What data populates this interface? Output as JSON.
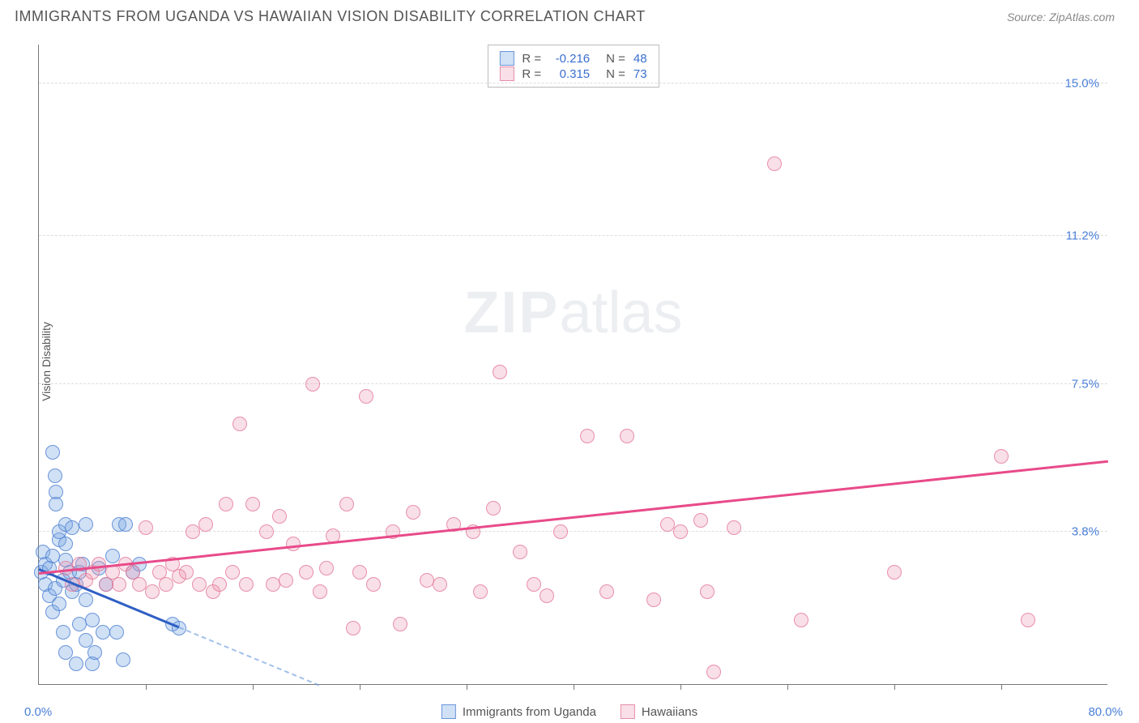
{
  "header": {
    "title": "IMMIGRANTS FROM UGANDA VS HAWAIIAN VISION DISABILITY CORRELATION CHART",
    "source": "Source: ZipAtlas.com"
  },
  "y_axis_label": "Vision Disability",
  "watermark": {
    "bold": "ZIP",
    "rest": "atlas"
  },
  "chart": {
    "type": "scatter",
    "xlim": [
      0,
      80
    ],
    "ylim": [
      0,
      16
    ],
    "x_min_label": "0.0%",
    "x_max_label": "80.0%",
    "y_ticks": [
      {
        "value": 3.8,
        "label": "3.8%"
      },
      {
        "value": 7.5,
        "label": "7.5%"
      },
      {
        "value": 11.2,
        "label": "11.2%"
      },
      {
        "value": 15.0,
        "label": "15.0%"
      }
    ],
    "x_tick_positions": [
      8,
      16,
      24,
      32,
      40,
      48,
      56,
      64,
      72
    ],
    "background_color": "#ffffff",
    "grid_color": "#dddddd",
    "marker_size": 18,
    "series": [
      {
        "name": "Immigrants from Uganda",
        "color_fill": "rgba(120,165,225,0.35)",
        "color_stroke": "rgba(80,130,210,0.8)",
        "class": "blue",
        "R": "-0.216",
        "N": "48",
        "trend": {
          "x1": 0,
          "y1": 2.85,
          "x2": 10.5,
          "y2": 1.4,
          "dash_continue_to_x": 21
        },
        "points": [
          [
            0.2,
            2.8
          ],
          [
            0.3,
            3.3
          ],
          [
            0.5,
            2.5
          ],
          [
            0.5,
            3.0
          ],
          [
            0.8,
            2.2
          ],
          [
            0.8,
            2.9
          ],
          [
            1.0,
            3.2
          ],
          [
            1.0,
            1.8
          ],
          [
            1.0,
            5.8
          ],
          [
            1.2,
            2.4
          ],
          [
            1.2,
            5.2
          ],
          [
            1.3,
            4.8
          ],
          [
            1.3,
            4.5
          ],
          [
            1.5,
            2.0
          ],
          [
            1.5,
            3.6
          ],
          [
            1.5,
            3.8
          ],
          [
            1.8,
            1.3
          ],
          [
            1.8,
            2.6
          ],
          [
            2.0,
            3.1
          ],
          [
            2.0,
            3.5
          ],
          [
            2.0,
            4.0
          ],
          [
            2.0,
            0.8
          ],
          [
            2.3,
            2.8
          ],
          [
            2.5,
            2.3
          ],
          [
            2.5,
            3.9
          ],
          [
            2.8,
            2.5
          ],
          [
            2.8,
            0.5
          ],
          [
            3.0,
            1.5
          ],
          [
            3.0,
            2.8
          ],
          [
            3.3,
            3.0
          ],
          [
            3.5,
            1.1
          ],
          [
            3.5,
            2.1
          ],
          [
            3.5,
            4.0
          ],
          [
            4.0,
            1.6
          ],
          [
            4.0,
            0.5
          ],
          [
            4.2,
            0.8
          ],
          [
            4.5,
            2.9
          ],
          [
            4.8,
            1.3
          ],
          [
            5.0,
            2.5
          ],
          [
            5.5,
            3.2
          ],
          [
            5.8,
            1.3
          ],
          [
            6.0,
            4.0
          ],
          [
            6.3,
            0.6
          ],
          [
            6.5,
            4.0
          ],
          [
            7.0,
            2.8
          ],
          [
            7.5,
            3.0
          ],
          [
            10.0,
            1.5
          ],
          [
            10.5,
            1.4
          ]
        ]
      },
      {
        "name": "Hawaiians",
        "color_fill": "rgba(235,150,175,0.3)",
        "color_stroke": "rgba(225,115,150,0.75)",
        "class": "pink",
        "R": "0.315",
        "N": "73",
        "trend": {
          "x1": 0,
          "y1": 2.75,
          "x2": 80,
          "y2": 5.55
        },
        "points": [
          [
            2.0,
            2.9
          ],
          [
            2.5,
            2.5
          ],
          [
            3.0,
            3.0
          ],
          [
            3.5,
            2.6
          ],
          [
            4.0,
            2.8
          ],
          [
            4.5,
            3.0
          ],
          [
            5.0,
            2.5
          ],
          [
            5.5,
            2.8
          ],
          [
            6.0,
            2.5
          ],
          [
            6.5,
            3.0
          ],
          [
            7.0,
            2.8
          ],
          [
            7.5,
            2.5
          ],
          [
            8.0,
            3.9
          ],
          [
            8.5,
            2.3
          ],
          [
            9.0,
            2.8
          ],
          [
            9.5,
            2.5
          ],
          [
            10.0,
            3.0
          ],
          [
            10.5,
            2.7
          ],
          [
            11.0,
            2.8
          ],
          [
            11.5,
            3.8
          ],
          [
            12.0,
            2.5
          ],
          [
            12.5,
            4.0
          ],
          [
            13.0,
            2.3
          ],
          [
            13.5,
            2.5
          ],
          [
            14.0,
            4.5
          ],
          [
            14.5,
            2.8
          ],
          [
            15.0,
            6.5
          ],
          [
            15.5,
            2.5
          ],
          [
            16.0,
            4.5
          ],
          [
            17.0,
            3.8
          ],
          [
            17.5,
            2.5
          ],
          [
            18.0,
            4.2
          ],
          [
            18.5,
            2.6
          ],
          [
            19.0,
            3.5
          ],
          [
            20.0,
            2.8
          ],
          [
            20.5,
            7.5
          ],
          [
            21.0,
            2.3
          ],
          [
            21.5,
            2.9
          ],
          [
            22.0,
            3.7
          ],
          [
            23.0,
            4.5
          ],
          [
            23.5,
            1.4
          ],
          [
            24.0,
            2.8
          ],
          [
            24.5,
            7.2
          ],
          [
            25.0,
            2.5
          ],
          [
            26.5,
            3.8
          ],
          [
            27.0,
            1.5
          ],
          [
            28.0,
            4.3
          ],
          [
            29.0,
            2.6
          ],
          [
            30.0,
            2.5
          ],
          [
            31.0,
            4.0
          ],
          [
            32.5,
            3.8
          ],
          [
            33.0,
            2.3
          ],
          [
            34.0,
            4.4
          ],
          [
            34.5,
            7.8
          ],
          [
            36.0,
            3.3
          ],
          [
            37.0,
            2.5
          ],
          [
            38.0,
            2.2
          ],
          [
            39.0,
            3.8
          ],
          [
            41.0,
            6.2
          ],
          [
            42.5,
            2.3
          ],
          [
            44.0,
            6.2
          ],
          [
            46.0,
            2.1
          ],
          [
            47.0,
            4.0
          ],
          [
            48.0,
            3.8
          ],
          [
            49.5,
            4.1
          ],
          [
            50.0,
            2.3
          ],
          [
            50.5,
            0.3
          ],
          [
            52.0,
            3.9
          ],
          [
            55.0,
            13.0
          ],
          [
            57.0,
            1.6
          ],
          [
            64.0,
            2.8
          ],
          [
            72.0,
            5.7
          ],
          [
            74.0,
            1.6
          ]
        ]
      }
    ]
  },
  "stats_box": {
    "rows": [
      {
        "class": "blue",
        "R_label": "R =",
        "R_val": "-0.216",
        "N_label": "N =",
        "N_val": "48"
      },
      {
        "class": "pink",
        "R_label": "R =",
        "R_val": "0.315",
        "N_label": "N =",
        "N_val": "73"
      }
    ]
  },
  "bottom_legend": [
    {
      "class": "blue",
      "label": "Immigrants from Uganda"
    },
    {
      "class": "pink",
      "label": "Hawaiians"
    }
  ]
}
